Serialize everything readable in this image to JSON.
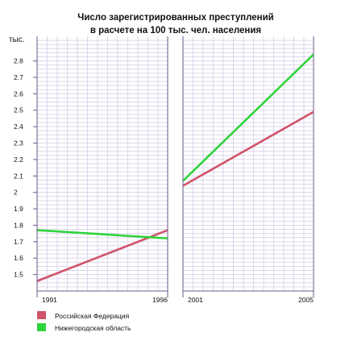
{
  "chart_data": {
    "type": "line",
    "title": "Число зарегистрированных преступлений",
    "subtitle": "в расчете на 100 тыс. чел. населения",
    "ylabel": "тыс.",
    "ylim": [
      1.4,
      2.95
    ],
    "yticks": [
      "1.5",
      "1.6",
      "1.7",
      "1.8",
      "1.9",
      "2",
      "2.1",
      "2.2",
      "2.3",
      "2.4",
      "2.5",
      "2.6",
      "2.7",
      "2.8"
    ],
    "grid": true,
    "legend_position": "bottom-left",
    "panels": [
      {
        "x": [
          1991,
          1996
        ],
        "xticks": [
          "1991",
          "1996"
        ],
        "series": [
          {
            "name": "Российская Федерация",
            "color": "#d05369",
            "values": [
              1.46,
              1.77
            ]
          },
          {
            "name": "Нижегородская область",
            "color": "#2fd43a",
            "values": [
              1.77,
              1.72
            ]
          }
        ]
      },
      {
        "x": [
          2001,
          2005
        ],
        "xticks": [
          "2001",
          "2005"
        ],
        "series": [
          {
            "name": "Российская Федерация",
            "color": "#d05369",
            "values": [
              2.04,
              2.49
            ]
          },
          {
            "name": "Нижегородская область",
            "color": "#2fd43a",
            "values": [
              2.07,
              2.84
            ]
          }
        ]
      }
    ],
    "legend": [
      {
        "label": "Российская Федерация",
        "color": "#d05369"
      },
      {
        "label": "Нижегородская область",
        "color": "#2fd43a"
      }
    ]
  }
}
